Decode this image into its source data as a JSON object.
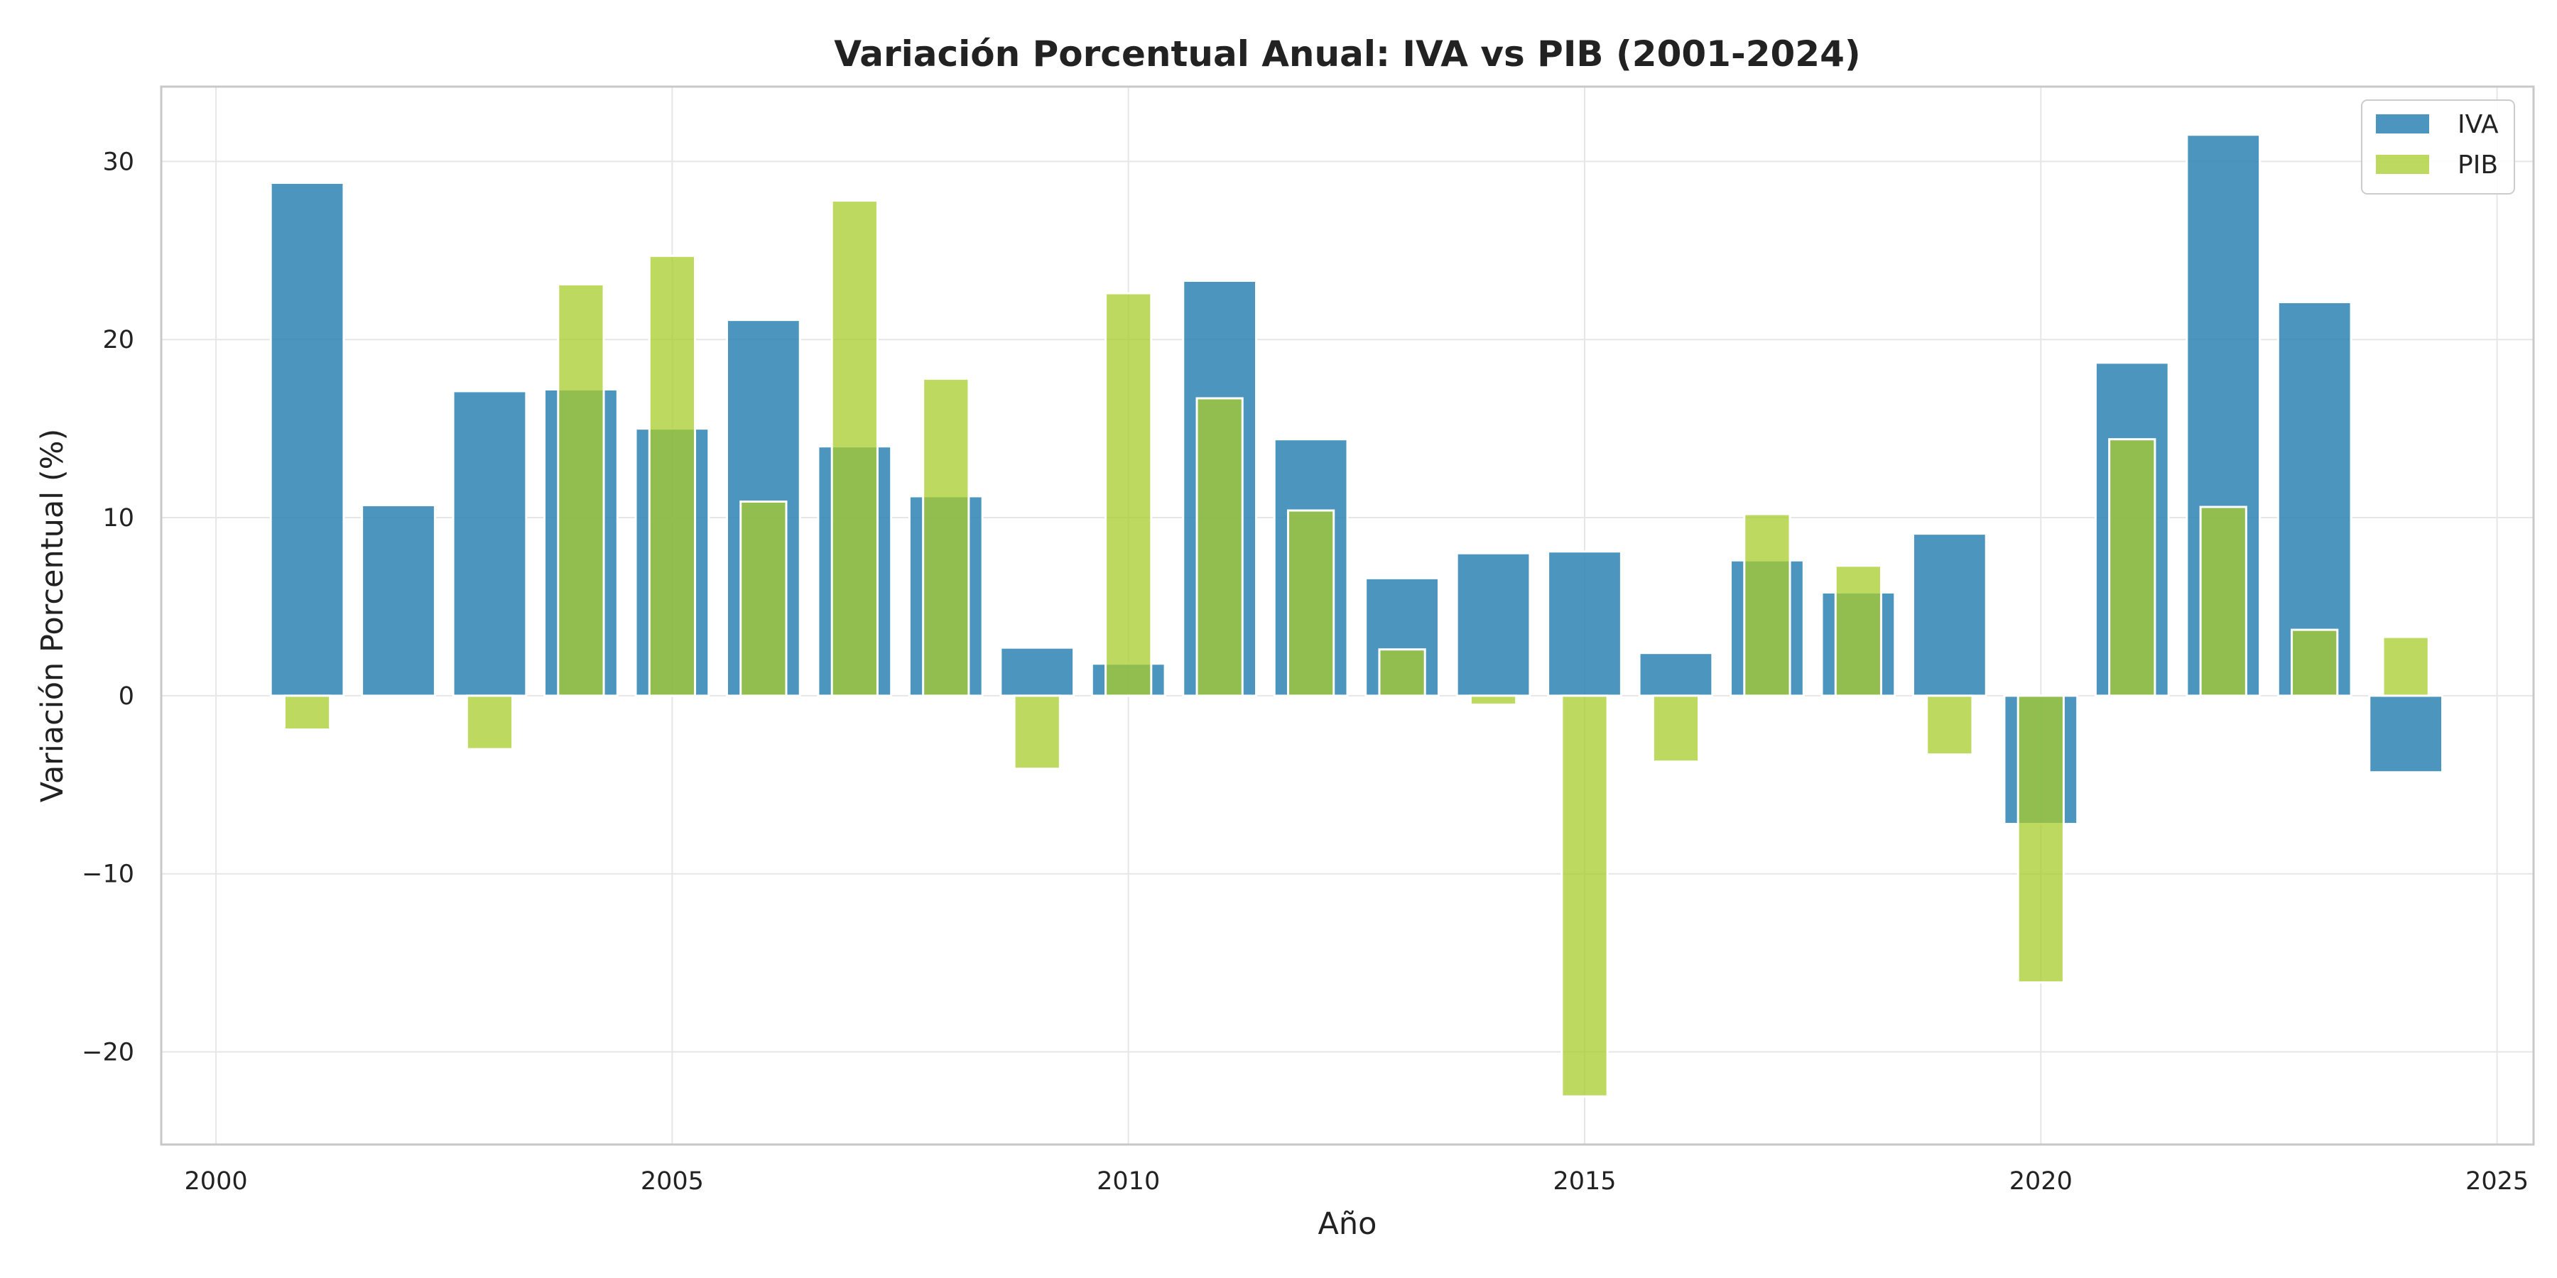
{
  "chart_data": {
    "type": "bar",
    "title": "Variación Porcentual Anual: IVA vs PIB (2001-2024)",
    "xlabel": "Año",
    "ylabel": "Variación Porcentual (%)",
    "x": [
      2001,
      2002,
      2003,
      2004,
      2005,
      2006,
      2007,
      2008,
      2009,
      2010,
      2011,
      2012,
      2013,
      2014,
      2015,
      2016,
      2017,
      2018,
      2019,
      2020,
      2021,
      2022,
      2023,
      2024
    ],
    "series": [
      {
        "name": "IVA",
        "color": "#2b83b4",
        "values": [
          28.8,
          10.7,
          17.1,
          17.2,
          15.0,
          21.1,
          14.0,
          11.2,
          2.7,
          1.8,
          23.3,
          14.4,
          6.6,
          8.0,
          8.1,
          2.4,
          7.6,
          5.8,
          9.1,
          -7.2,
          18.7,
          31.5,
          22.1,
          -4.3
        ]
      },
      {
        "name": "PIB",
        "color": "#a8cc2a",
        "values": [
          -1.9,
          0.0,
          -3.0,
          23.1,
          24.7,
          10.9,
          27.8,
          17.8,
          -4.1,
          22.6,
          16.7,
          10.4,
          2.6,
          -0.5,
          -22.5,
          -3.7,
          10.2,
          7.3,
          -3.3,
          -16.1,
          14.4,
          10.6,
          3.7,
          3.3
        ]
      }
    ],
    "xlim": [
      1999.4,
      2025.4
    ],
    "ylim": [
      -25.2,
      34.2
    ],
    "xticks": [
      2000,
      2005,
      2010,
      2015,
      2020,
      2025
    ],
    "yticks": [
      -20,
      -10,
      0,
      10,
      20,
      30
    ],
    "grid": true,
    "legend": {
      "position": "top-right",
      "entries": [
        "IVA",
        "PIB"
      ]
    }
  }
}
